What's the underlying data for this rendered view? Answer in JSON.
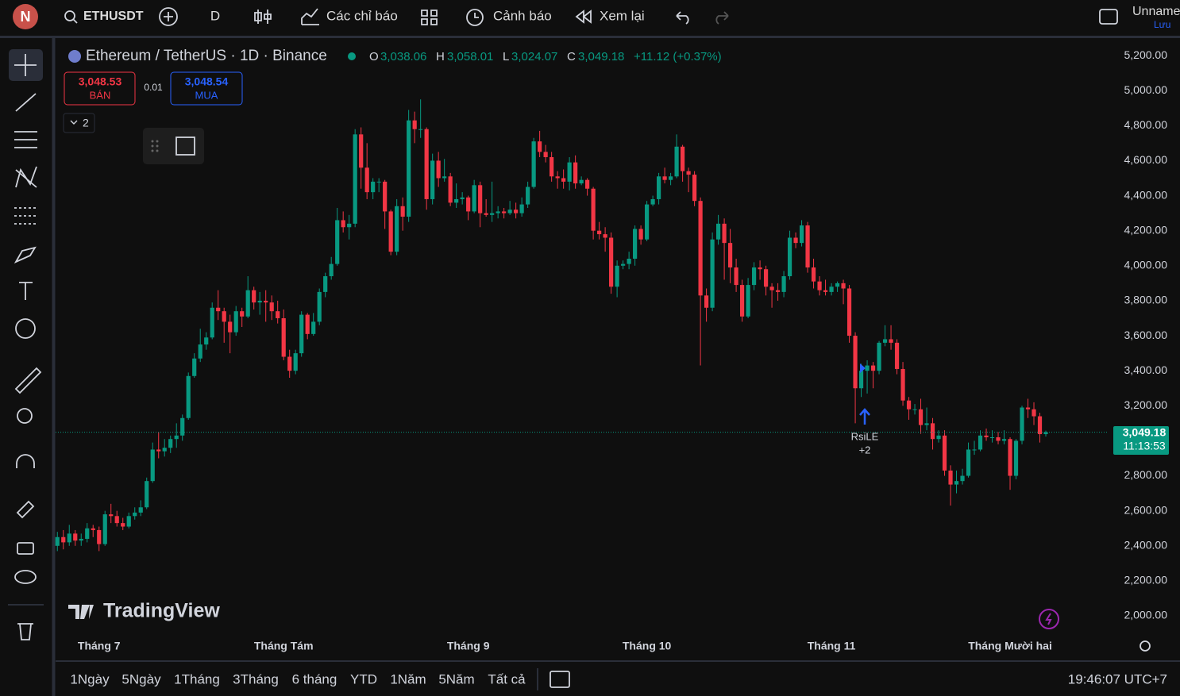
{
  "toolbar": {
    "avatar": "N",
    "symbol": "ETHUSDT",
    "interval": "D",
    "indicators": "Các chỉ báo",
    "alerts": "Cảnh báo",
    "replay": "Xem lại",
    "layout_name": "Unname",
    "save": "Lưu"
  },
  "trade": {
    "sell_price": "3,048.53",
    "sell": "BÁN",
    "quantity": "0.01",
    "buy_price": "3,048.54",
    "buy": "MUA",
    "collapsed": "2"
  },
  "chart_data": {
    "type": "candlestick",
    "title": "Ethereum / TetherUS · 1D · Binance",
    "header": {
      "o": "O",
      "o_value": "3,038.06",
      "h": "H",
      "h_value": "3,058.01",
      "l": "L",
      "l_value": "3,024.07",
      "c": "C",
      "c_value": "3,049.18",
      "change": "+11.12 (+0.37%)"
    },
    "up_color": "#089981",
    "down_color": "#f23645",
    "open": [
      2400,
      2450,
      2420,
      2470,
      2430,
      2440,
      2500,
      2490,
      2410,
      2580,
      2570,
      2530,
      2510,
      2570,
      2590,
      2620,
      2770,
      2950,
      2940,
      2960,
      3010,
      3030,
      3130,
      3370,
      3470,
      3550,
      3590,
      3760,
      3740,
      3680,
      3620,
      3740,
      3710,
      3860,
      3790,
      3800,
      3790,
      3740,
      3700,
      3480,
      3400,
      3500,
      3720,
      3610,
      3680,
      3850,
      3940,
      4010,
      4260,
      4220,
      4240,
      4750,
      4560,
      4420,
      4480,
      4480,
      4310,
      4080,
      4340,
      4280,
      4830,
      4780,
      4780,
      4380,
      4600,
      4500,
      4510,
      4360,
      4380,
      4390,
      4310,
      4460,
      4300,
      4290,
      4300,
      4310,
      4300,
      4320,
      4300,
      4350,
      4450,
      4710,
      4650,
      4620,
      4510,
      4500,
      4480,
      4590,
      4470,
      4490,
      4440,
      4200,
      4180,
      4160,
      3880,
      4000,
      4010,
      4040,
      4210,
      4150,
      4350,
      4380,
      4510,
      4490,
      4510,
      4680,
      4540,
      4520,
      4370,
      3830,
      3760,
      4150,
      4240,
      4130,
      3990,
      3890,
      3710,
      3890,
      3990,
      3980,
      3880,
      3860,
      3850,
      3940,
      4160,
      4130,
      4230,
      3990,
      3910,
      3860,
      3850,
      3880,
      3900,
      3870,
      3600,
      3300,
      3400,
      3430,
      3400,
      3560,
      3580,
      3560,
      3410,
      3230,
      3180,
      3180,
      3090,
      3100,
      3010,
      3030,
      2830,
      2750,
      2770,
      2800,
      2950,
      2950,
      3030,
      3020,
      3020,
      3000,
      3010,
      2800,
      3000,
      3190,
      3180,
      3140,
      3038.06
    ],
    "high": [
      2480,
      2490,
      2520,
      2490,
      2470,
      2530,
      2520,
      2510,
      2600,
      2640,
      2600,
      2560,
      2590,
      2620,
      2660,
      2790,
      2990,
      3050,
      3010,
      3030,
      3100,
      3150,
      3390,
      3500,
      3640,
      3620,
      3790,
      3860,
      3760,
      3720,
      3770,
      3760,
      3940,
      3880,
      3850,
      3860,
      3830,
      3800,
      3750,
      3520,
      3520,
      3740,
      3730,
      3730,
      3870,
      3960,
      4050,
      4330,
      4310,
      4290,
      4780,
      4790,
      4700,
      4500,
      4500,
      4490,
      4320,
      4380,
      4390,
      4890,
      4880,
      4950,
      4790,
      4640,
      4650,
      4610,
      4530,
      4470,
      4420,
      4400,
      4490,
      4480,
      4380,
      4480,
      4340,
      4330,
      4370,
      4360,
      4390,
      4480,
      4730,
      4770,
      4690,
      4650,
      4540,
      4550,
      4620,
      4630,
      4510,
      4500,
      4450,
      4250,
      4220,
      4190,
      4030,
      4030,
      4080,
      4230,
      4230,
      4370,
      4400,
      4530,
      4560,
      4530,
      4750,
      4690,
      4560,
      4540,
      4390,
      3870,
      4190,
      4290,
      4270,
      4210,
      4040,
      3920,
      3930,
      4020,
      4030,
      4000,
      3900,
      3900,
      3970,
      4200,
      4190,
      4260,
      4250,
      4040,
      3940,
      3920,
      3900,
      3910,
      3920,
      3890,
      3620,
      3440,
      3460,
      3450,
      3570,
      3660,
      3660,
      3580,
      3450,
      3250,
      3210,
      3240,
      3190,
      3130,
      3060,
      3060,
      2860,
      2830,
      2840,
      2990,
      3000,
      3060,
      3070,
      3060,
      3050,
      3060,
      3020,
      3010,
      3200,
      3240,
      3220,
      3160,
      3058.01
    ],
    "low": [
      2370,
      2380,
      2400,
      2400,
      2400,
      2420,
      2450,
      2370,
      2400,
      2530,
      2510,
      2490,
      2500,
      2550,
      2570,
      2610,
      2760,
      2900,
      2910,
      2930,
      2960,
      3000,
      3120,
      3360,
      3450,
      3520,
      3580,
      3690,
      3560,
      3500,
      3600,
      3650,
      3700,
      3750,
      3720,
      3680,
      3690,
      3670,
      3460,
      3360,
      3380,
      3480,
      3580,
      3600,
      3660,
      3820,
      3920,
      4000,
      4190,
      4150,
      4220,
      4440,
      4380,
      4380,
      4420,
      4210,
      4060,
      4060,
      4200,
      4250,
      4700,
      4730,
      4320,
      4350,
      4450,
      4480,
      4340,
      4330,
      4350,
      4260,
      4300,
      4220,
      4280,
      4250,
      4270,
      4270,
      4290,
      4270,
      4280,
      4330,
      4440,
      4620,
      4590,
      4480,
      4440,
      4440,
      4430,
      4440,
      4460,
      4400,
      4150,
      4150,
      4080,
      3840,
      3820,
      3980,
      3980,
      4000,
      4120,
      4140,
      4340,
      4350,
      4470,
      4460,
      4500,
      4480,
      4420,
      4340,
      3430,
      3680,
      3740,
      4120,
      3920,
      3900,
      3850,
      3680,
      3700,
      3860,
      3920,
      3830,
      3760,
      3800,
      3820,
      3920,
      4100,
      4110,
      3960,
      3870,
      3830,
      3830,
      3830,
      3850,
      3780,
      3560,
      3100,
      3250,
      3270,
      3300,
      3380,
      3540,
      3520,
      3380,
      3200,
      3120,
      3150,
      3040,
      3060,
      2950,
      2990,
      2800,
      2630,
      2700,
      2750,
      2790,
      2920,
      2940,
      3000,
      2990,
      2980,
      2980,
      2720,
      2780,
      2980,
      3130,
      3090,
      2990,
      3024.07
    ],
    "close": [
      2450,
      2420,
      2470,
      2430,
      2440,
      2500,
      2490,
      2410,
      2580,
      2570,
      2530,
      2510,
      2570,
      2590,
      2620,
      2770,
      2950,
      2940,
      2960,
      3010,
      3030,
      3130,
      3370,
      3470,
      3550,
      3590,
      3760,
      3740,
      3680,
      3620,
      3740,
      3710,
      3860,
      3790,
      3800,
      3790,
      3740,
      3700,
      3480,
      3400,
      3500,
      3720,
      3610,
      3680,
      3850,
      3940,
      4010,
      4260,
      4220,
      4240,
      4750,
      4560,
      4420,
      4480,
      4480,
      4310,
      4080,
      4340,
      4280,
      4830,
      4780,
      4780,
      4380,
      4600,
      4500,
      4510,
      4360,
      4380,
      4390,
      4310,
      4460,
      4300,
      4290,
      4300,
      4310,
      4300,
      4320,
      4300,
      4350,
      4450,
      4710,
      4650,
      4620,
      4510,
      4500,
      4480,
      4590,
      4470,
      4490,
      4440,
      4200,
      4180,
      4160,
      3880,
      4000,
      4010,
      4040,
      4210,
      4150,
      4350,
      4380,
      4510,
      4490,
      4510,
      4680,
      4540,
      4520,
      4370,
      3830,
      3760,
      4150,
      4240,
      4130,
      3990,
      3890,
      3710,
      3890,
      3990,
      3980,
      3880,
      3860,
      3850,
      3940,
      4160,
      4130,
      4230,
      3990,
      3910,
      3860,
      3850,
      3880,
      3900,
      3870,
      3600,
      3300,
      3400,
      3430,
      3400,
      3560,
      3580,
      3560,
      3410,
      3230,
      3180,
      3180,
      3090,
      3100,
      3010,
      3030,
      2830,
      2750,
      2770,
      2800,
      2950,
      2950,
      3030,
      3020,
      3020,
      3000,
      3010,
      2800,
      3000,
      3190,
      3180,
      3140,
      3038.06,
      3049.18
    ],
    "xlim": [
      -0.3,
      176.4
    ],
    "xticks": [
      {
        "value": 7,
        "label": "Tháng 7"
      },
      {
        "value": 38,
        "label": "Tháng Tám"
      },
      {
        "value": 69,
        "label": "Tháng 9"
      },
      {
        "value": 99,
        "label": "Tháng 10"
      },
      {
        "value": 130,
        "label": "Tháng 11"
      },
      {
        "value": 160,
        "label": "Tháng Mười hai"
      }
    ],
    "ylim": [
      1905,
      5300
    ],
    "yticks": [
      {
        "value": 2000,
        "label": "2,000.00"
      },
      {
        "value": 2200,
        "label": "2,200.00"
      },
      {
        "value": 2400,
        "label": "2,400.00"
      },
      {
        "value": 2600,
        "label": "2,600.00"
      },
      {
        "value": 2800,
        "label": "2,800.00"
      },
      {
        "value": 3200,
        "label": "3,200.00"
      },
      {
        "value": 3400,
        "label": "3,400.00"
      },
      {
        "value": 3600,
        "label": "3,600.00"
      },
      {
        "value": 3800,
        "label": "3,800.00"
      },
      {
        "value": 4000,
        "label": "4,000.00"
      },
      {
        "value": 4200,
        "label": "4,200.00"
      },
      {
        "value": 4400,
        "label": "4,400.00"
      },
      {
        "value": 4600,
        "label": "4,600.00"
      },
      {
        "value": 4800,
        "label": "4,800.00"
      },
      {
        "value": 5000,
        "label": "5,000.00"
      },
      {
        "value": 5200,
        "label": "5,200.00"
      }
    ],
    "price_label": "3,049.18",
    "countdown": "11:13:53",
    "marker": {
      "label": "RsiLE",
      "count": "+2"
    },
    "watermark": "TradingView"
  },
  "bottom_bar": {
    "ranges": [
      "1Ngày",
      "5Ngày",
      "1Tháng",
      "3Tháng",
      "6 tháng",
      "YTD",
      "1Năm",
      "5Năm",
      "Tất cả"
    ],
    "clock": "19:46:07 UTC+7"
  }
}
